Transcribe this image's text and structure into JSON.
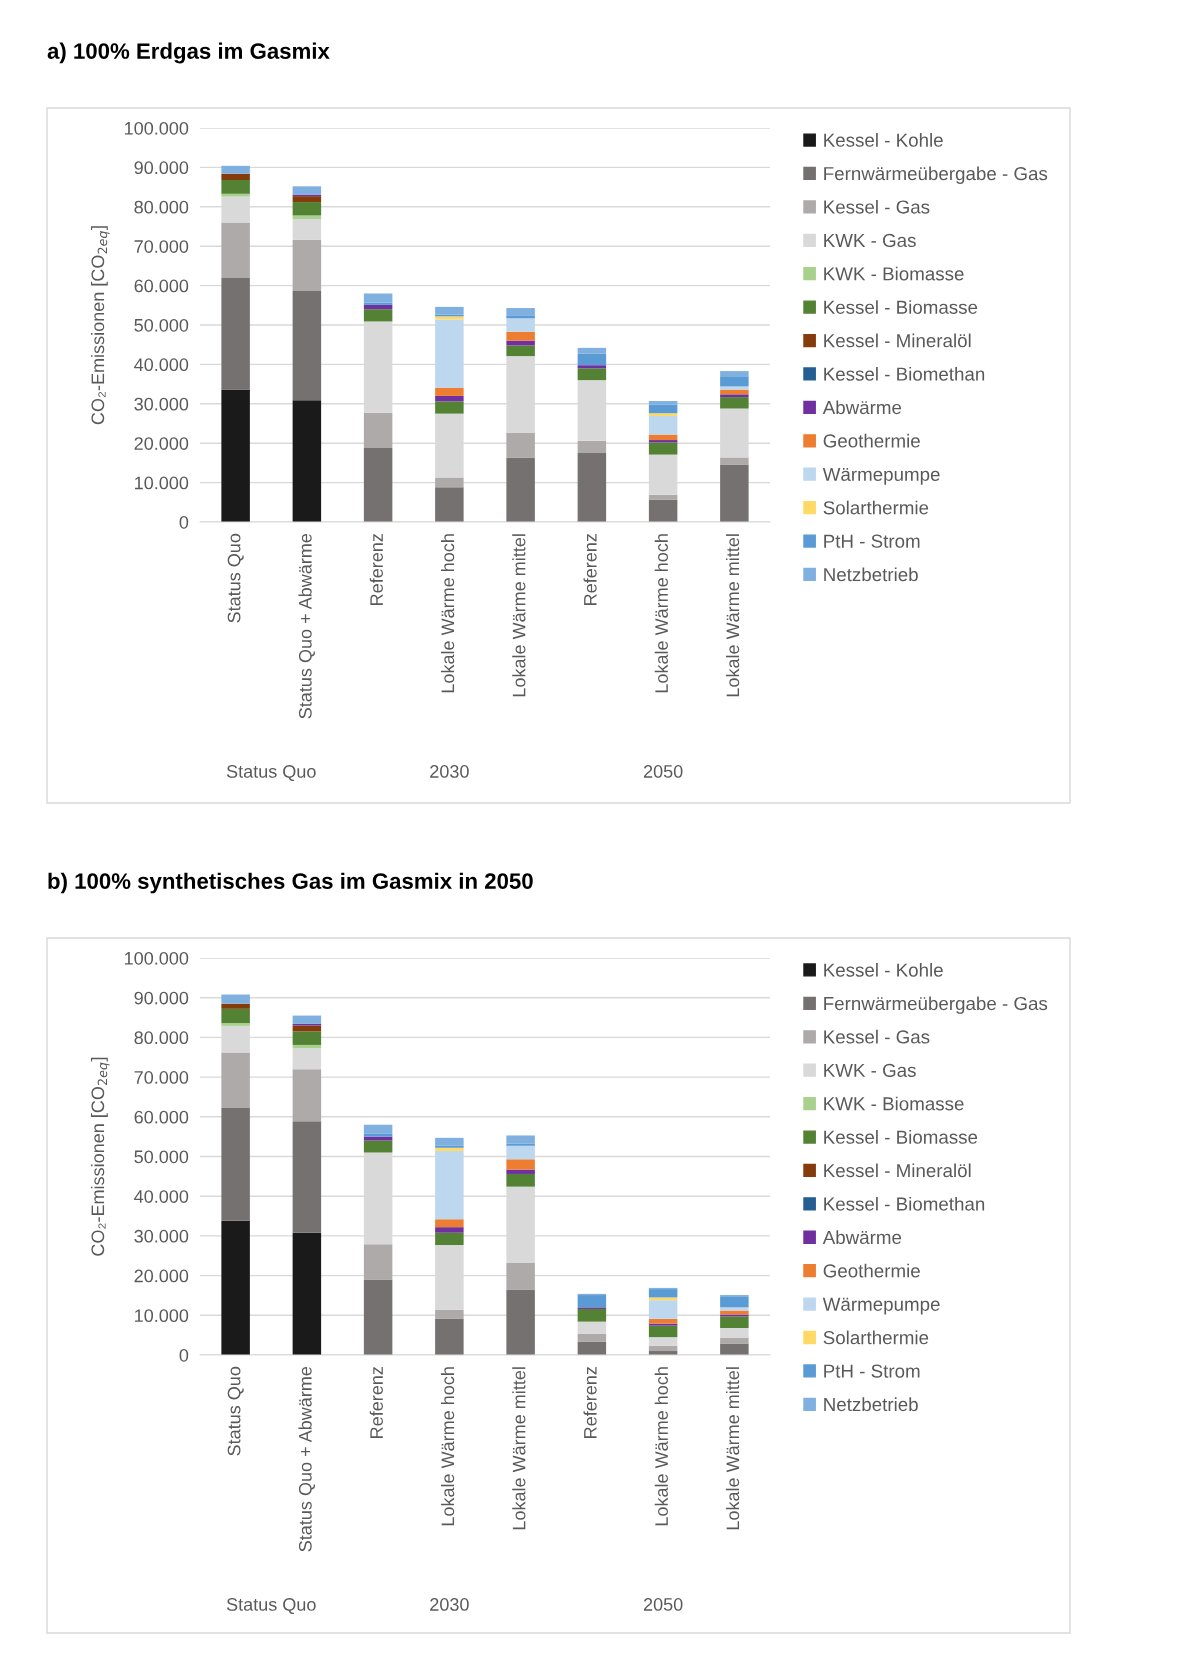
{
  "chart_data": [
    {
      "type": "bar",
      "stacked": true,
      "title": "a) 100% Erdgas im Gasmix",
      "ylabel": "CO₂-Emissionen [CO$_{2eq}$]",
      "legend": "right",
      "grid": "y",
      "categories": [
        "Status Quo",
        "Status Quo + Abwärme",
        "Referenz",
        "Lokale Wärme hoch",
        "Lokale Wärme mittel",
        "Referenz",
        "Lokale Wärme hoch",
        "Lokale Wärme mittel"
      ],
      "annotations": [
        "Status Quo",
        "2030",
        "2050"
      ],
      "ylim": [
        0,
        100000
      ],
      "yticks": [
        {
          "value": 0,
          "label": "0"
        },
        {
          "value": 10000,
          "label": "10.000"
        },
        {
          "value": 20000,
          "label": "20.000"
        },
        {
          "value": 30000,
          "label": "30.000"
        },
        {
          "value": 40000,
          "label": "40.000"
        },
        {
          "value": 50000,
          "label": "50.000"
        },
        {
          "value": 60000,
          "label": "60.000"
        },
        {
          "value": 70000,
          "label": "70.000"
        },
        {
          "value": 80000,
          "label": "80.000"
        },
        {
          "value": 90000,
          "label": "90.000"
        },
        {
          "value": 100000,
          "label": "100.000"
        }
      ],
      "series": [
        {
          "name": "Kessel - Kohle",
          "color": "#1a1a1a",
          "values": [
            33600,
            30900,
            null,
            null,
            null,
            null,
            null,
            null
          ]
        },
        {
          "name": "Fernwärmeübergabe - Gas",
          "color": "#767171",
          "values": [
            28300,
            27700,
            18800,
            8800,
            16400,
            17500,
            5700,
            14500
          ]
        },
        {
          "name": "Kessel - Gas",
          "color": "#aeaaaa",
          "values": [
            14100,
            13000,
            8900,
            2500,
            6300,
            3100,
            1200,
            1900
          ]
        },
        {
          "name": "KWK - Gas",
          "color": "#d9d9d9",
          "values": [
            6600,
            5300,
            23200,
            16200,
            19400,
            15400,
            10200,
            12400
          ]
        },
        {
          "name": "KWK - Biomasse",
          "color": "#a9d18e",
          "values": [
            700,
            900,
            null,
            null,
            null,
            null,
            null,
            null
          ]
        },
        {
          "name": "Kessel - Biomasse",
          "color": "#548235",
          "values": [
            3500,
            3400,
            3100,
            3100,
            2700,
            3000,
            3100,
            2900
          ]
        },
        {
          "name": "Kessel - Mineralöl",
          "color": "#843c0c",
          "values": [
            1600,
            1500,
            null,
            null,
            null,
            null,
            null,
            null
          ]
        },
        {
          "name": "Kessel - Biomethan",
          "color": "#255e91",
          "values": [
            null,
            null,
            null,
            null,
            null,
            null,
            null,
            null
          ]
        },
        {
          "name": "Abwärme",
          "color": "#7030a0",
          "values": [
            null,
            400,
            1100,
            1400,
            1200,
            800,
            600,
            700
          ]
        },
        {
          "name": "Geothermie",
          "color": "#ed7d31",
          "values": [
            null,
            null,
            null,
            2100,
            2300,
            null,
            1400,
            1200
          ]
        },
        {
          "name": "Wärmepumpe",
          "color": "#bdd7ee",
          "values": [
            null,
            null,
            null,
            17300,
            3400,
            null,
            4700,
            800
          ]
        },
        {
          "name": "Solarthermie",
          "color": "#ffd966",
          "values": [
            null,
            null,
            null,
            800,
            null,
            null,
            700,
            null
          ]
        },
        {
          "name": "PtH - Strom",
          "color": "#5b9bd5",
          "values": [
            null,
            null,
            600,
            400,
            600,
            2900,
            2200,
            2600
          ]
        },
        {
          "name": "Netzbetrieb",
          "color": "#7fb0e0",
          "values": [
            2000,
            2100,
            2300,
            2000,
            2000,
            1500,
            900,
            1300
          ]
        }
      ]
    },
    {
      "type": "bar",
      "stacked": true,
      "title": "b) 100% synthetisches Gas im Gasmix in 2050",
      "ylabel": "CO₂-Emissionen [CO$_{2eq}$]",
      "legend": "right",
      "grid": "y",
      "categories": [
        "Status Quo",
        "Status Quo + Abwärme",
        "Referenz",
        "Lokale Wärme hoch",
        "Lokale Wärme mittel",
        "Referenz",
        "Lokale Wärme hoch",
        "Lokale Wärme mittel"
      ],
      "annotations": [
        "Status Quo",
        "2030",
        "2050"
      ],
      "ylim": [
        0,
        100000
      ],
      "yticks": [
        {
          "value": 0,
          "label": "0"
        },
        {
          "value": 10000,
          "label": "10.000"
        },
        {
          "value": 20000,
          "label": "20.000"
        },
        {
          "value": 30000,
          "label": "30.000"
        },
        {
          "value": 40000,
          "label": "40.000"
        },
        {
          "value": 50000,
          "label": "50.000"
        },
        {
          "value": 60000,
          "label": "60.000"
        },
        {
          "value": 70000,
          "label": "70.000"
        },
        {
          "value": 80000,
          "label": "80.000"
        },
        {
          "value": 90000,
          "label": "90.000"
        },
        {
          "value": 100000,
          "label": "100.000"
        }
      ],
      "series": [
        {
          "name": "Kessel - Kohle",
          "color": "#1a1a1a",
          "values": [
            33800,
            30800,
            null,
            null,
            null,
            null,
            null,
            null
          ]
        },
        {
          "name": "Fernwärmeübergabe - Gas",
          "color": "#767171",
          "values": [
            28400,
            28100,
            19000,
            9100,
            16500,
            3300,
            1000,
            2900
          ]
        },
        {
          "name": "Kessel - Gas",
          "color": "#aeaaaa",
          "values": [
            14000,
            13100,
            8900,
            2300,
            6700,
            2100,
            1300,
            1400
          ]
        },
        {
          "name": "KWK - Gas",
          "color": "#d9d9d9",
          "values": [
            6700,
            5300,
            23100,
            16300,
            19200,
            3000,
            2200,
            2500
          ]
        },
        {
          "name": "KWK - Biomasse",
          "color": "#a9d18e",
          "values": [
            700,
            800,
            null,
            null,
            null,
            null,
            null,
            null
          ]
        },
        {
          "name": "Kessel - Biomasse",
          "color": "#548235",
          "values": [
            3600,
            3400,
            3000,
            3100,
            3200,
            3200,
            2900,
            2900
          ]
        },
        {
          "name": "Kessel - Mineralöl",
          "color": "#843c0c",
          "values": [
            1300,
            1500,
            null,
            null,
            null,
            null,
            null,
            null
          ]
        },
        {
          "name": "Kessel - Biomethan",
          "color": "#255e91",
          "values": [
            null,
            null,
            null,
            null,
            null,
            null,
            null,
            null
          ]
        },
        {
          "name": "Abwärme",
          "color": "#7030a0",
          "values": [
            null,
            400,
            1000,
            1400,
            1100,
            400,
            500,
            500
          ]
        },
        {
          "name": "Geothermie",
          "color": "#ed7d31",
          "values": [
            null,
            null,
            null,
            2000,
            2600,
            null,
            1200,
            1000
          ]
        },
        {
          "name": "Wärmepumpe",
          "color": "#bdd7ee",
          "values": [
            null,
            null,
            null,
            17200,
            3400,
            null,
            4700,
            800
          ]
        },
        {
          "name": "Solarthermie",
          "color": "#ffd966",
          "values": [
            null,
            null,
            null,
            800,
            null,
            null,
            700,
            null
          ]
        },
        {
          "name": "PtH - Strom",
          "color": "#5b9bd5",
          "values": [
            null,
            null,
            700,
            500,
            500,
            3100,
            2100,
            2800
          ]
        },
        {
          "name": "Netzbetrieb",
          "color": "#7fb0e0",
          "values": [
            2300,
            2100,
            2300,
            2000,
            2100,
            300,
            300,
            300
          ]
        }
      ]
    }
  ]
}
